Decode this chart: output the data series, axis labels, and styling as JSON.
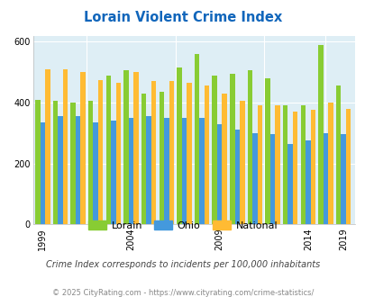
{
  "title": "Lorain Violent Crime Index",
  "lorain_data": [
    410,
    405,
    400,
    405,
    490,
    505,
    430,
    435,
    515,
    560,
    490,
    495,
    505,
    480,
    390,
    390,
    590,
    455
  ],
  "ohio_data": [
    335,
    355,
    355,
    335,
    340,
    350,
    355,
    350,
    350,
    350,
    330,
    310,
    300,
    295,
    265,
    275,
    300,
    295
  ],
  "national_data": [
    510,
    510,
    500,
    475,
    465,
    500,
    470,
    470,
    465,
    455,
    430,
    405,
    390,
    390,
    370,
    375,
    400,
    380
  ],
  "data_years": [
    1999,
    2000,
    2001,
    2002,
    2003,
    2004,
    2005,
    2006,
    2007,
    2008,
    2009,
    2010,
    2011,
    2012,
    2013,
    2014,
    2016,
    2019
  ],
  "lorain_color": "#88cc33",
  "ohio_color": "#4499dd",
  "national_color": "#ffbb33",
  "plot_bg": "#deeef5",
  "ylim": [
    0,
    620
  ],
  "yticks": [
    0,
    200,
    400,
    600
  ],
  "xtick_years": [
    1999,
    2004,
    2009,
    2014,
    2019
  ],
  "legend_labels": [
    "Lorain",
    "Ohio",
    "National"
  ],
  "subtitle": "Crime Index corresponds to incidents per 100,000 inhabitants",
  "footer": "© 2025 CityRating.com - https://www.cityrating.com/crime-statistics/",
  "title_color": "#1166bb",
  "subtitle_color": "#444444",
  "footer_color": "#888888",
  "bar_width": 0.28
}
